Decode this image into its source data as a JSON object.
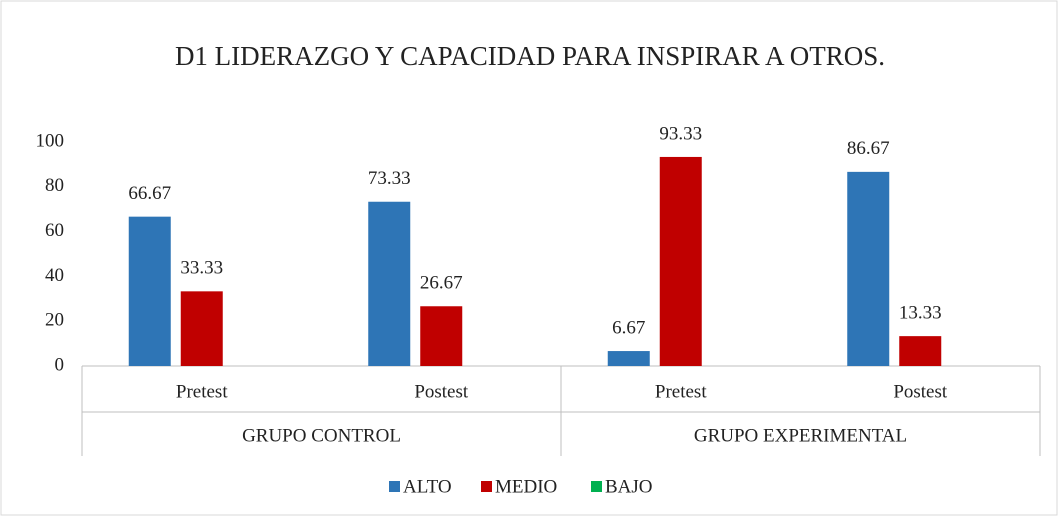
{
  "chart_data": {
    "type": "bar",
    "title": "D1 LIDERAZGO Y CAPACIDAD PARA INSPIRAR A OTROS.",
    "categories": [
      "Pretest",
      "Postest",
      "Pretest",
      "Postest"
    ],
    "groups": [
      "GRUPO CONTROL",
      "GRUPO EXPERIMENTAL"
    ],
    "series": [
      {
        "name": "ALTO",
        "color": "#2e75b6",
        "values": [
          66.67,
          73.33,
          6.67,
          86.67
        ]
      },
      {
        "name": "MEDIO",
        "color": "#c00000",
        "values": [
          33.33,
          26.67,
          93.33,
          13.33
        ]
      },
      {
        "name": "BAJO",
        "color": "#00b050",
        "values": [
          null,
          null,
          null,
          null
        ]
      }
    ],
    "ylim": [
      0,
      100
    ],
    "yticks": [
      0,
      20,
      40,
      60,
      80,
      100
    ],
    "grid": false,
    "legend": "bottom"
  }
}
